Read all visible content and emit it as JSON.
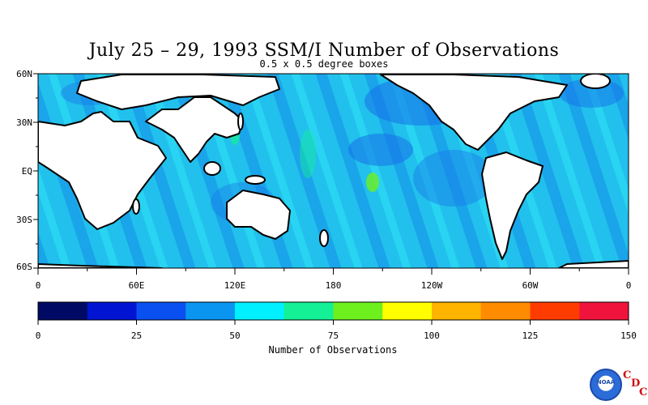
{
  "title": "July 25 – 29, 1993 SSM/I Number of Observations",
  "subtitle": "0.5 x 0.5 degree boxes",
  "map": {
    "lat_labels": [
      "60N",
      "30N",
      "EQ",
      "30S",
      "60S"
    ],
    "lon_labels": [
      "0",
      "60E",
      "120E",
      "180",
      "120W",
      "60W",
      "0"
    ],
    "lon_range": [
      0,
      360
    ],
    "lat_range": [
      -60,
      60
    ],
    "background_color": "#1fb8e8"
  },
  "colorbar": {
    "title": "Number of Observations",
    "tick_labels": [
      "0",
      "25",
      "50",
      "75",
      "100",
      "125",
      "150"
    ],
    "range": [
      0,
      150
    ],
    "colors": [
      "#000a64",
      "#0014d2",
      "#0a50f0",
      "#0a96f0",
      "#00f0ff",
      "#14f096",
      "#6ef01e",
      "#ffff00",
      "#ffb400",
      "#ff8c00",
      "#ff3c00",
      "#f0143c"
    ]
  },
  "logo": {
    "name": "NOAA",
    "letters": [
      "C",
      "D",
      "C"
    ]
  }
}
